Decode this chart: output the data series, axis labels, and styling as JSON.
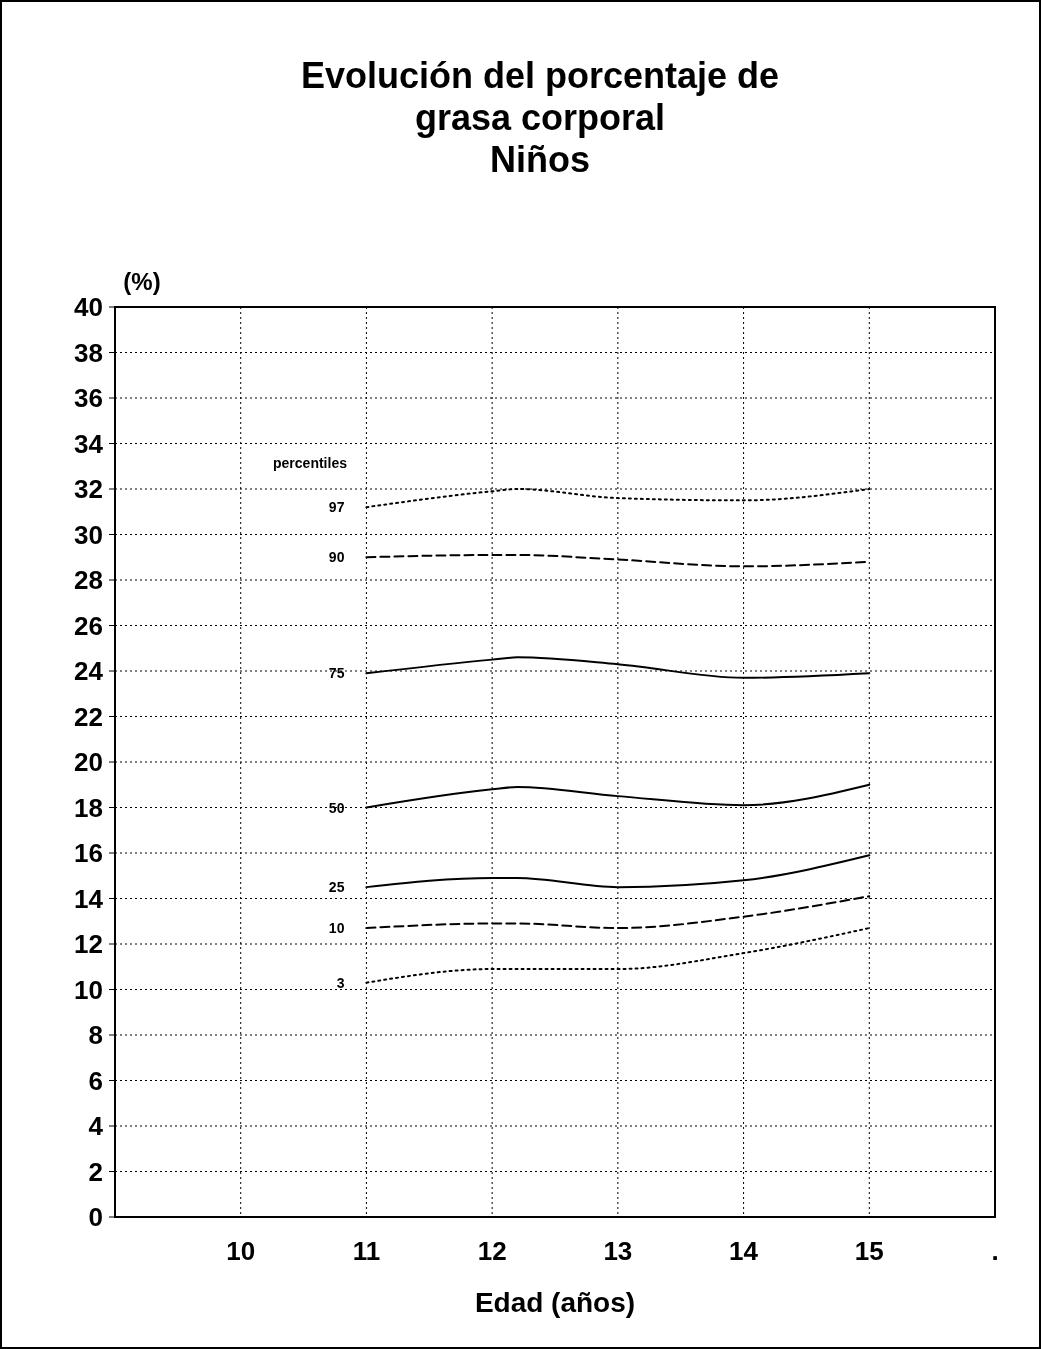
{
  "chart_data": {
    "type": "line",
    "title": "Evolución del porcentaje de\ngrasa corporal\nNiños",
    "xlabel": "Edad (años)",
    "ylabel": "(%)",
    "annotations": [
      "percentiles"
    ],
    "xlim": [
      9,
      16
    ],
    "xticks": [
      10,
      11,
      12,
      13,
      14,
      15,
      {
        "value": 16,
        "label": "."
      }
    ],
    "ylim": [
      0,
      40
    ],
    "yticks": [
      0,
      2,
      4,
      6,
      8,
      10,
      12,
      14,
      16,
      18,
      20,
      22,
      24,
      26,
      28,
      30,
      32,
      34,
      36,
      38,
      40
    ],
    "grid": true,
    "marker": "none",
    "x": [
      11,
      12,
      12.2,
      13,
      14,
      15
    ],
    "series": [
      {
        "name": "97",
        "color": "#000000",
        "line_style": "dotted",
        "values": [
          31.2,
          31.9,
          32.0,
          31.6,
          31.5,
          32.0
        ]
      },
      {
        "name": "90",
        "color": "#000000",
        "line_style": "dashed",
        "values": [
          29.0,
          29.1,
          29.1,
          28.9,
          28.6,
          28.8
        ]
      },
      {
        "name": "75",
        "color": "#000000",
        "line_style": "solid",
        "values": [
          23.9,
          24.5,
          24.6,
          24.3,
          23.7,
          23.9
        ]
      },
      {
        "name": "50",
        "color": "#000000",
        "line_style": "solid",
        "values": [
          18.0,
          18.8,
          18.9,
          18.5,
          18.1,
          19.0
        ]
      },
      {
        "name": "25",
        "color": "#000000",
        "line_style": "solid",
        "values": [
          14.5,
          14.9,
          14.9,
          14.5,
          14.8,
          15.9
        ]
      },
      {
        "name": "10",
        "color": "#000000",
        "line_style": "dashed",
        "values": [
          12.7,
          12.9,
          12.9,
          12.7,
          13.2,
          14.1
        ]
      },
      {
        "name": "3",
        "color": "#000000",
        "line_style": "dotted",
        "values": [
          10.3,
          10.9,
          10.9,
          10.9,
          11.6,
          12.7
        ]
      }
    ]
  }
}
